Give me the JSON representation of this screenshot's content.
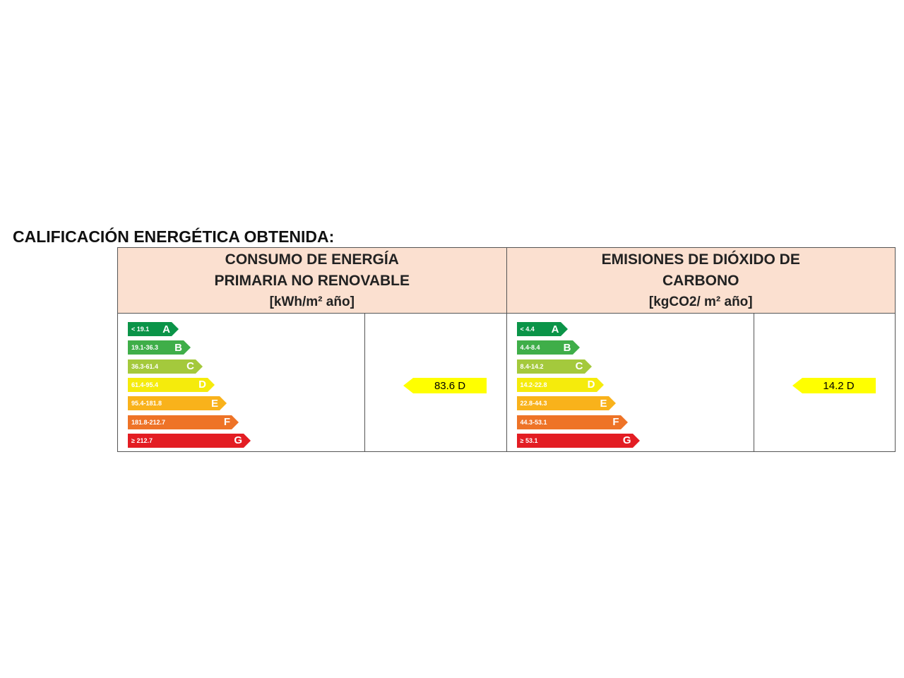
{
  "title": "CALIFICACIÓN ENERGÉTICA OBTENIDA:",
  "colors": [
    "#0b9448",
    "#3fae49",
    "#a4c93c",
    "#f5eb0c",
    "#f9b21b",
    "#ee7327",
    "#e31d23"
  ],
  "energy": {
    "header": [
      "CONSUMO DE ENERGÍA",
      "PRIMARIA NO RENOVABLE"
    ],
    "unit": "[kWh/m² año]",
    "value": "83.6 D",
    "classes": [
      {
        "letter": "A",
        "range": "< 19.1"
      },
      {
        "letter": "B",
        "range": "19.1-36.3"
      },
      {
        "letter": "C",
        "range": "36.3-61.4"
      },
      {
        "letter": "D",
        "range": "61.4-95.4"
      },
      {
        "letter": "E",
        "range": "95.4-181.8"
      },
      {
        "letter": "F",
        "range": "181.8-212.7"
      },
      {
        "letter": "G",
        "range": "≥ 212.7"
      }
    ]
  },
  "emissions": {
    "header": [
      "EMISIONES DE DIÓXIDO DE",
      "CARBONO"
    ],
    "unit": "[kgCO2/ m² año]",
    "value": "14.2 D",
    "classes": [
      {
        "letter": "A",
        "range": "< 4.4"
      },
      {
        "letter": "B",
        "range": "4.4-8.4"
      },
      {
        "letter": "C",
        "range": "8.4-14.2"
      },
      {
        "letter": "D",
        "range": "14.2-22.8"
      },
      {
        "letter": "E",
        "range": "22.8-44.3"
      },
      {
        "letter": "F",
        "range": "44.3-53.1"
      },
      {
        "letter": "G",
        "range": "≥ 53.1"
      }
    ]
  }
}
